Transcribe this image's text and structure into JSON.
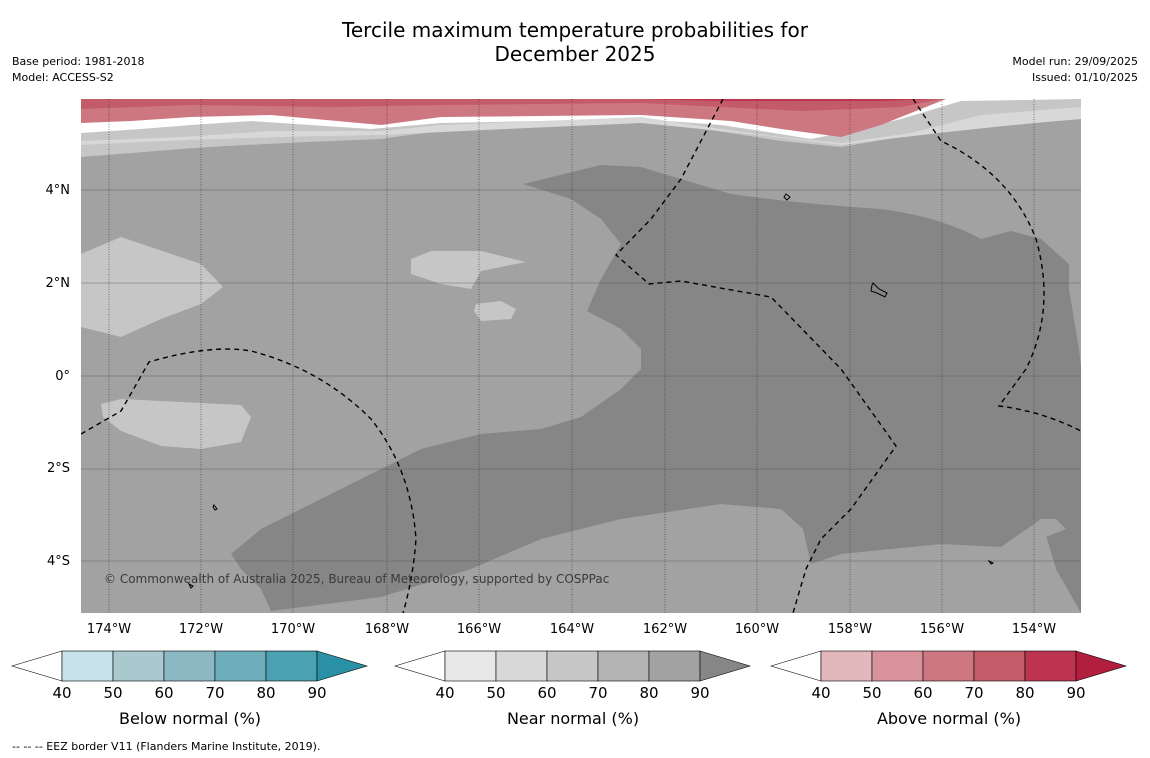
{
  "title_line1": "Tercile maximum temperature probabilities for",
  "title_line2": "December 2025",
  "base_period": "Base period: 1981-2018",
  "model": "Model: ACCESS-S2",
  "model_run": "Model run: 29/09/2025",
  "issued": "Issued: 01/10/2025",
  "copyright": "© Commonwealth of Australia 2025, Bureau of Meteorology, supported by COSPPac",
  "footnote": "--  --  -- EEZ border V11 (Flanders Marine Institute, 2019).",
  "lat_ticks": [
    "4°N",
    "2°N",
    "0°",
    "2°S",
    "4°S"
  ],
  "lon_ticks": [
    "174°W",
    "172°W",
    "170°W",
    "168°W",
    "166°W",
    "164°W",
    "162°W",
    "160°W",
    "158°W",
    "156°W",
    "154°W"
  ],
  "colorbars": [
    {
      "label": "Below normal (%)",
      "ticks": [
        "40",
        "50",
        "60",
        "70",
        "80",
        "90"
      ],
      "colors": [
        "#ffffff",
        "#c8e2e9",
        "#a9c9ce",
        "#8cb8c4",
        "#6eaebc",
        "#4aa1b1",
        "#2a90a5"
      ]
    },
    {
      "label": "Near normal (%)",
      "ticks": [
        "40",
        "50",
        "60",
        "70",
        "80",
        "90"
      ],
      "colors": [
        "#ffffff",
        "#e8e8e8",
        "#d8d8d8",
        "#c6c6c6",
        "#b4b4b4",
        "#a2a2a2",
        "#868686"
      ]
    },
    {
      "label": "Above normal (%)",
      "ticks": [
        "40",
        "50",
        "60",
        "70",
        "80",
        "90"
      ],
      "colors": [
        "#ffffff",
        "#e3b8bd",
        "#d9929b",
        "#cd7781",
        "#c45b69",
        "#bd3450",
        "#b21e3e"
      ]
    }
  ]
}
